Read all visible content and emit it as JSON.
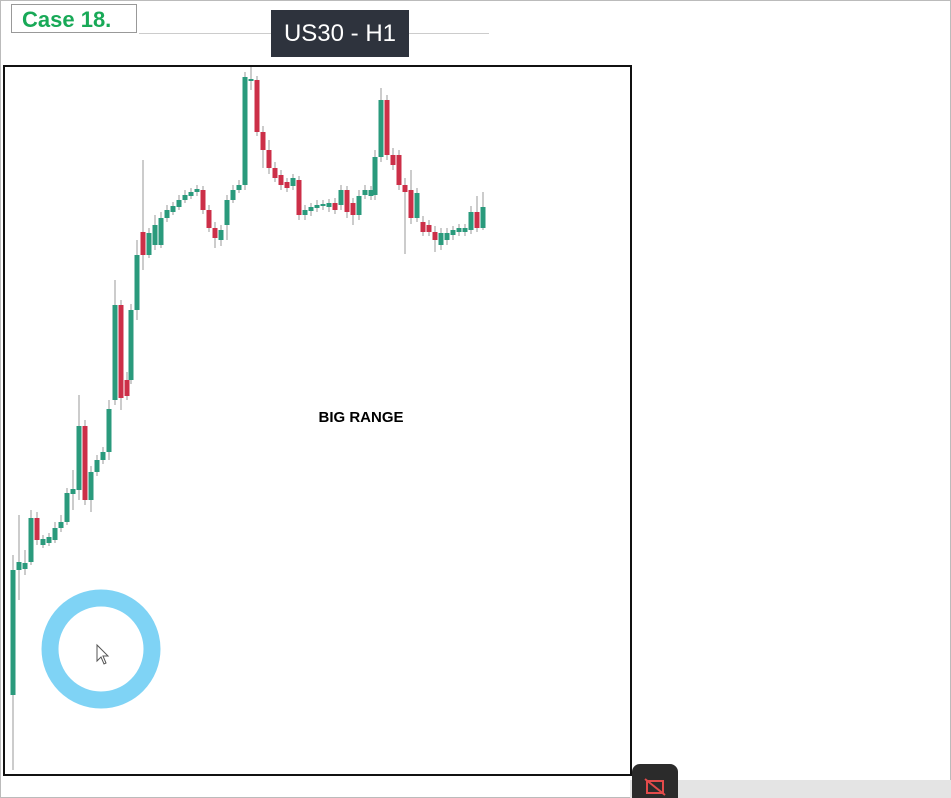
{
  "header": {
    "case": "Case 18.",
    "symbol": "US30 - H1"
  },
  "chart": {
    "annotation": "BIG RANGE"
  }
}
